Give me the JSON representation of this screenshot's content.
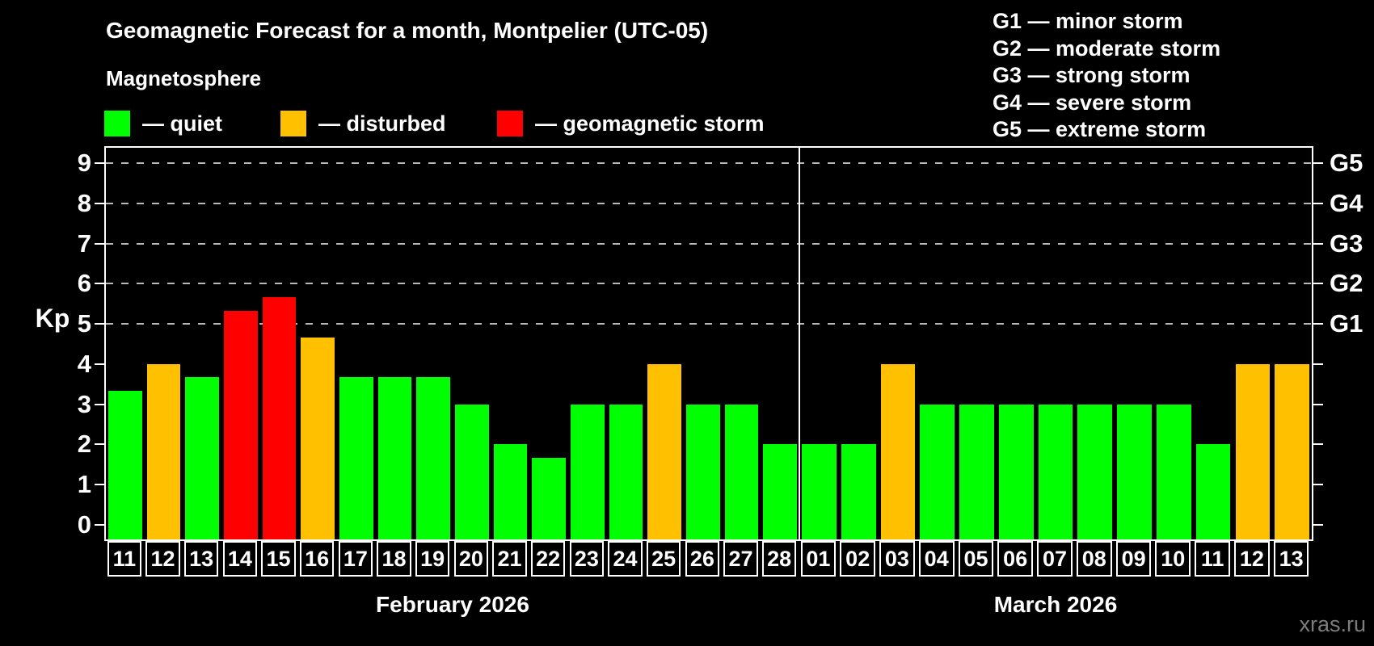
{
  "header": {
    "title": "Geomagnetic Forecast for a month, Montpelier (UTC-05)",
    "subtitle": "Magnetosphere"
  },
  "legend": {
    "items": [
      {
        "label": "— quiet",
        "status": "quiet"
      },
      {
        "label": "— disturbed",
        "status": "disturbed"
      },
      {
        "label": "— geomagnetic storm",
        "status": "storm"
      }
    ]
  },
  "g_scale_legend": [
    "G1 — minor storm",
    "G2 — moderate storm",
    "G3 — strong storm",
    "G4 — severe storm",
    "G5 — extreme storm"
  ],
  "watermark": "xras.ru",
  "colors": {
    "quiet": "#00ff00",
    "disturbed": "#ffc000",
    "storm": "#ff0000",
    "background": "#000000",
    "text": "#ffffff",
    "grid": "#b8b8b8",
    "frame": "#ffffff",
    "watermark": "#7d7d7d"
  },
  "chart_data": {
    "type": "bar",
    "title": "Geomagnetic Forecast for a month, Montpelier (UTC-05)",
    "ylabel": "Kp",
    "ylim": [
      0,
      9.4
    ],
    "yticks": [
      0,
      1,
      2,
      3,
      4,
      5,
      6,
      7,
      8,
      9
    ],
    "grid_levels": [
      5,
      6,
      7,
      8,
      9
    ],
    "right_axis": [
      {
        "kp": 5,
        "label": "G1"
      },
      {
        "kp": 6,
        "label": "G2"
      },
      {
        "kp": 7,
        "label": "G3"
      },
      {
        "kp": 8,
        "label": "G4"
      },
      {
        "kp": 9,
        "label": "G5"
      }
    ],
    "legend_position": "top",
    "grid": "dashed-horizontal",
    "months": [
      {
        "label": "February 2026",
        "days": [
          {
            "day": "11",
            "kp": 3.33,
            "status": "quiet"
          },
          {
            "day": "12",
            "kp": 4.0,
            "status": "disturbed"
          },
          {
            "day": "13",
            "kp": 3.67,
            "status": "quiet"
          },
          {
            "day": "14",
            "kp": 5.33,
            "status": "storm"
          },
          {
            "day": "15",
            "kp": 5.67,
            "status": "storm"
          },
          {
            "day": "16",
            "kp": 4.67,
            "status": "disturbed"
          },
          {
            "day": "17",
            "kp": 3.67,
            "status": "quiet"
          },
          {
            "day": "18",
            "kp": 3.67,
            "status": "quiet"
          },
          {
            "day": "19",
            "kp": 3.67,
            "status": "quiet"
          },
          {
            "day": "20",
            "kp": 3.0,
            "status": "quiet"
          },
          {
            "day": "21",
            "kp": 2.0,
            "status": "quiet"
          },
          {
            "day": "22",
            "kp": 1.67,
            "status": "quiet"
          },
          {
            "day": "23",
            "kp": 3.0,
            "status": "quiet"
          },
          {
            "day": "24",
            "kp": 3.0,
            "status": "quiet"
          },
          {
            "day": "25",
            "kp": 4.0,
            "status": "disturbed"
          },
          {
            "day": "26",
            "kp": 3.0,
            "status": "quiet"
          },
          {
            "day": "27",
            "kp": 3.0,
            "status": "quiet"
          },
          {
            "day": "28",
            "kp": 2.0,
            "status": "quiet"
          }
        ]
      },
      {
        "label": "March 2026",
        "days": [
          {
            "day": "01",
            "kp": 2.0,
            "status": "quiet"
          },
          {
            "day": "02",
            "kp": 2.0,
            "status": "quiet"
          },
          {
            "day": "03",
            "kp": 4.0,
            "status": "disturbed"
          },
          {
            "day": "04",
            "kp": 3.0,
            "status": "quiet"
          },
          {
            "day": "05",
            "kp": 3.0,
            "status": "quiet"
          },
          {
            "day": "06",
            "kp": 3.0,
            "status": "quiet"
          },
          {
            "day": "07",
            "kp": 3.0,
            "status": "quiet"
          },
          {
            "day": "08",
            "kp": 3.0,
            "status": "quiet"
          },
          {
            "day": "09",
            "kp": 3.0,
            "status": "quiet"
          },
          {
            "day": "10",
            "kp": 3.0,
            "status": "quiet"
          },
          {
            "day": "11",
            "kp": 2.0,
            "status": "quiet"
          },
          {
            "day": "12",
            "kp": 4.0,
            "status": "disturbed"
          },
          {
            "day": "13",
            "kp": 4.0,
            "status": "disturbed"
          }
        ]
      }
    ]
  }
}
